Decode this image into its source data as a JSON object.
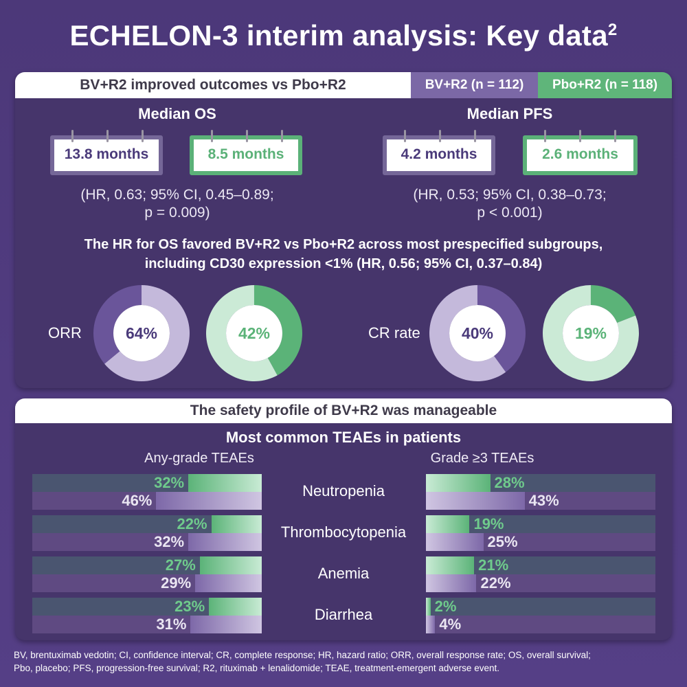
{
  "title": "ECHELON-3 interim analysis: Key data",
  "title_sup": "2",
  "colors": {
    "bv": "#6a559a",
    "bv_light": "#c4b9db",
    "pbo": "#5bb378",
    "pbo_light": "#cbead6"
  },
  "efficacy": {
    "header": "BV+R2 improved outcomes vs Pbo+R2",
    "legend": {
      "bv": "BV+R2 (n = 112)",
      "pbo": "Pbo+R2 (n = 118)"
    },
    "os": {
      "title": "Median OS",
      "bv": "13.8 months",
      "pbo": "8.5 months",
      "stats_line1": "(HR, 0.63; 95% CI, 0.45–0.89;",
      "stats_line2": "p = 0.009)"
    },
    "pfs": {
      "title": "Median PFS",
      "bv": "4.2 months",
      "pbo": "2.6 months",
      "stats_line1": "(HR, 0.53; 95% CI, 0.38–0.73;",
      "stats_line2": "p < 0.001)"
    },
    "subgroup_line1": "The HR for OS favored BV+R2 vs Pbo+R2 across most prespecified subgroups,",
    "subgroup_line2": "including CD30 expression <1% (HR, 0.56; 95% CI, 0.37–0.84)",
    "orr": {
      "label": "ORR",
      "bv": 64,
      "bv_text": "64%",
      "pbo": 42,
      "pbo_text": "42%"
    },
    "cr": {
      "label": "CR rate",
      "bv": 40,
      "bv_text": "40%",
      "pbo": 19,
      "pbo_text": "19%"
    }
  },
  "safety": {
    "header": "The safety profile of BV+R2 was manageable",
    "subtitle": "Most common TEAEs in patients",
    "any_grade_label": "Any-grade TEAEs",
    "grade3_label": "Grade ≥3 TEAEs",
    "rows": [
      {
        "name": "Neutropenia",
        "any_pbo": 32,
        "any_pbo_text": "32%",
        "any_bv": 46,
        "any_bv_text": "46%",
        "g3_pbo": 28,
        "g3_pbo_text": "28%",
        "g3_bv": 43,
        "g3_bv_text": "43%"
      },
      {
        "name": "Thrombocytopenia",
        "any_pbo": 22,
        "any_pbo_text": "22%",
        "any_bv": 32,
        "any_bv_text": "32%",
        "g3_pbo": 19,
        "g3_pbo_text": "19%",
        "g3_bv": 25,
        "g3_bv_text": "25%"
      },
      {
        "name": "Anemia",
        "any_pbo": 27,
        "any_pbo_text": "27%",
        "any_bv": 29,
        "any_bv_text": "29%",
        "g3_pbo": 21,
        "g3_pbo_text": "21%",
        "g3_bv": 22,
        "g3_bv_text": "22%"
      },
      {
        "name": "Diarrhea",
        "any_pbo": 23,
        "any_pbo_text": "23%",
        "any_bv": 31,
        "any_bv_text": "31%",
        "g3_pbo": 2,
        "g3_pbo_text": "2%",
        "g3_bv": 4,
        "g3_bv_text": "4%"
      }
    ]
  },
  "footer_line1": "BV, brentuximab vedotin; CI, confidence interval; CR, complete response; HR, hazard ratio; ORR, overall response rate; OS, overall survival;",
  "footer_line2": "Pbo, placebo; PFS, progression-free survival; R2, rituximab + lenalidomide; TEAE, treatment-emergent adverse event."
}
